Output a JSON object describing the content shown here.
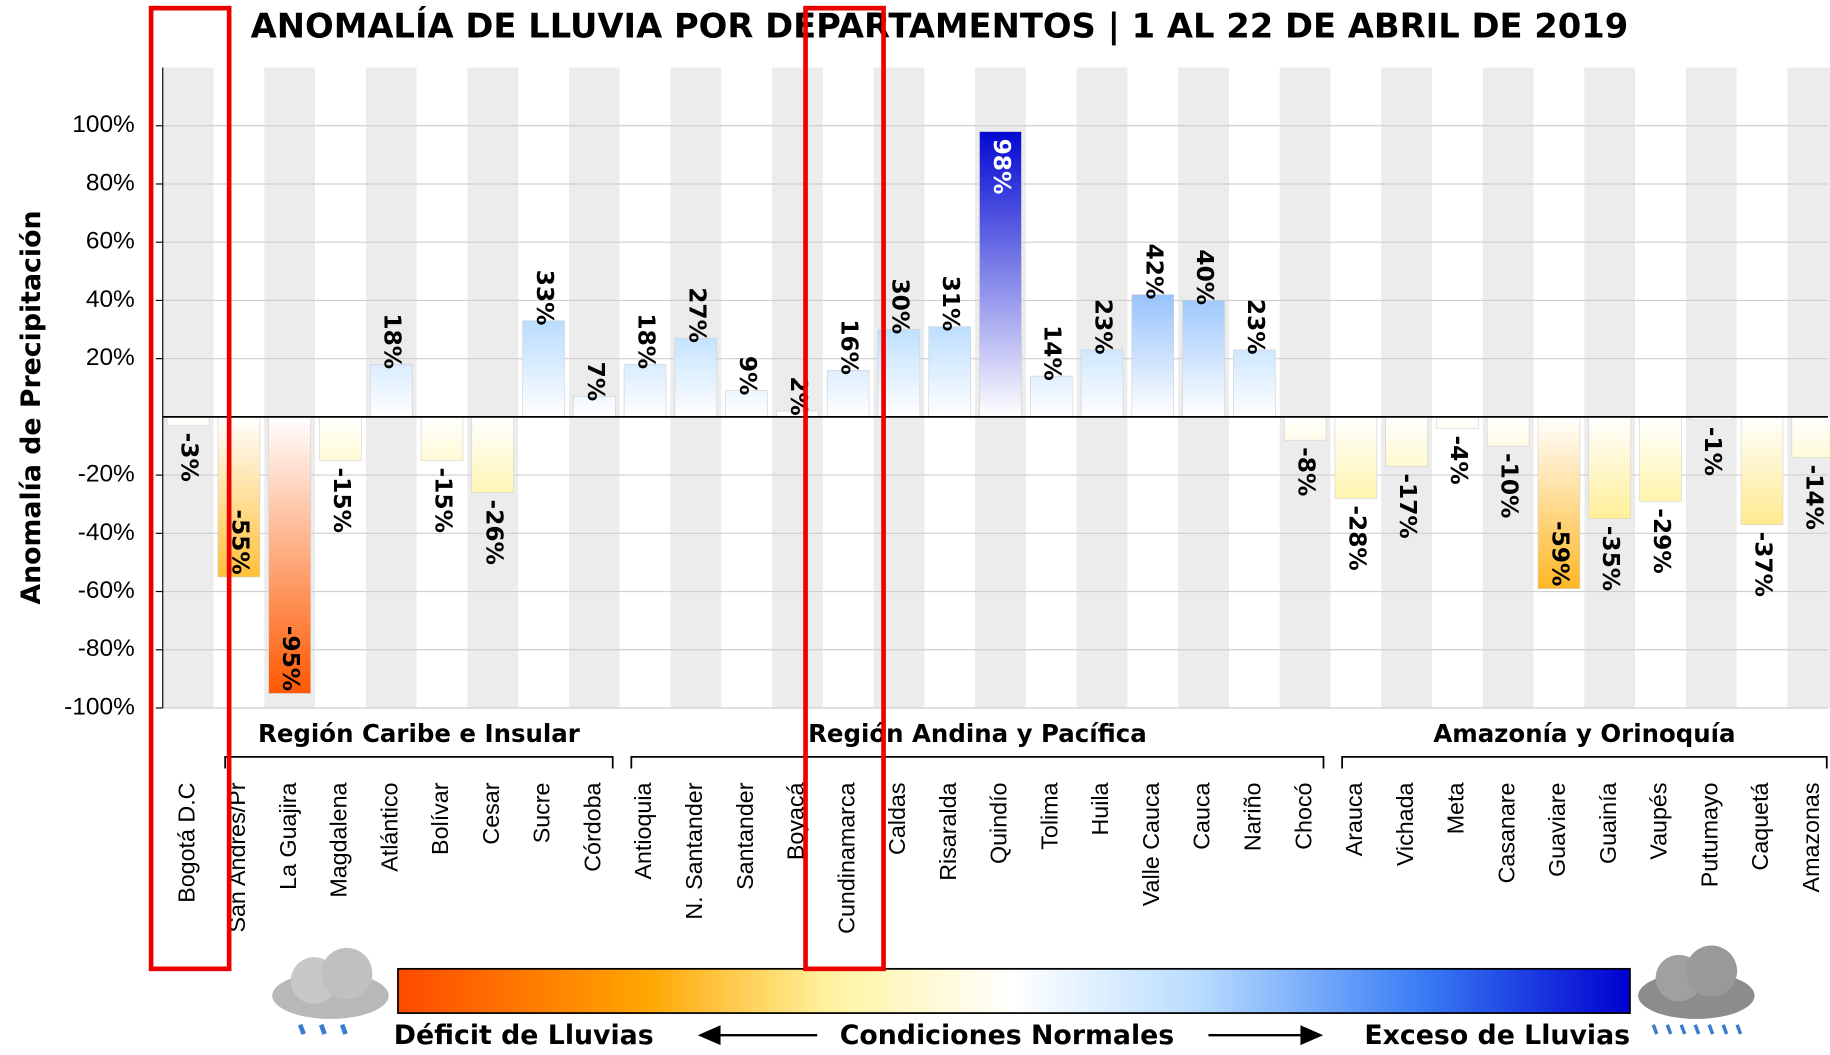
{
  "chart_data": {
    "type": "bar",
    "title": "ANOMALÍA DE LLUVIA POR DEPARTAMENTOS | 1 AL 22 DE ABRIL DE 2019",
    "y_label": "Anomalía de Precipitación",
    "categories": [
      "Bogotá D.C",
      "San Andrés/Pr",
      "La Guajira",
      "Magdalena",
      "Atlántico",
      "Bolívar",
      "Cesar",
      "Sucre",
      "Córdoba",
      "Antioquia",
      "N. Santander",
      "Santander",
      "Boyacá",
      "Cundinamarca",
      "Caldas",
      "Risaralda",
      "Quindío",
      "Tolima",
      "Huila",
      "Valle Cauca",
      "Cauca",
      "Nariño",
      "Chocó",
      "Arauca",
      "Vichada",
      "Meta",
      "Casanare",
      "Guaviare",
      "Guainía",
      "Vaupés",
      "Putumayo",
      "Caquetá",
      "Amazonas"
    ],
    "values": [
      -3,
      -55,
      -95,
      -15,
      18,
      -15,
      -26,
      33,
      7,
      18,
      27,
      9,
      2,
      16,
      30,
      31,
      98,
      14,
      23,
      42,
      40,
      23,
      -8,
      -28,
      -17,
      -4,
      -10,
      -59,
      -35,
      -29,
      -1,
      -37,
      -14
    ],
    "value_labels": [
      "-3%",
      "-55%",
      "-95%",
      "-15%",
      "18%",
      "-15%",
      "-26%",
      "33%",
      "7%",
      "18%",
      "27%",
      "9%",
      "2%",
      "16%",
      "30%",
      "31%",
      "98%",
      "14%",
      "23%",
      "42%",
      "40%",
      "23%",
      "-8%",
      "-28%",
      "-17%",
      "-4%",
      "-10%",
      "-59%",
      "-35%",
      "-29%",
      "-1%",
      "-37%",
      "-14%"
    ],
    "regions": [
      {
        "name": "Región Caribe e Insular",
        "span": [
          1,
          8
        ]
      },
      {
        "name": "Región Andina y Pacífica",
        "span": [
          9,
          22
        ]
      },
      {
        "name": "Amazonía y Orinoquía",
        "span": [
          23,
          32
        ]
      }
    ],
    "ylim": [
      -100,
      120
    ],
    "yticks": [
      {
        "value": -100,
        "label": "-100%"
      },
      {
        "value": -80,
        "label": "-80%"
      },
      {
        "value": -60,
        "label": "-60%"
      },
      {
        "value": -40,
        "label": "-40%"
      },
      {
        "value": -20,
        "label": "-20%"
      },
      {
        "value": 20,
        "label": "20%"
      },
      {
        "value": 40,
        "label": "40%"
      },
      {
        "value": 60,
        "label": "60%"
      },
      {
        "value": 80,
        "label": "80%"
      },
      {
        "value": 100,
        "label": "100%"
      }
    ],
    "grid": true,
    "color_scale": [
      "#ff4a00",
      "#ffa500",
      "#fff3a0",
      "#ffffff",
      "#b8dcff",
      "#3a7df5",
      "#0000d0"
    ],
    "legend": {
      "low": "Déficit de Lluvias",
      "mid": "Condiciones Normales",
      "high": "Exceso de Lluvias"
    }
  }
}
